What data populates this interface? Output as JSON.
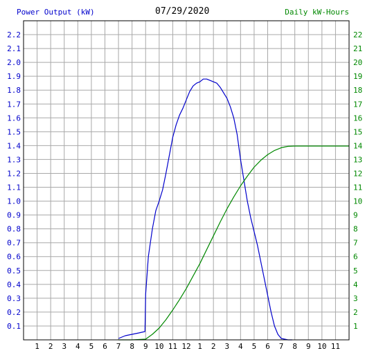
{
  "header": {
    "left_title": "Power Output (kW)",
    "date": "07/29/2020",
    "right_title": "Daily kW-Hours"
  },
  "colors": {
    "power": "#0000cc",
    "energy": "#008800",
    "grid": "#a8a8a8",
    "frame": "#000000"
  },
  "chart_data": {
    "type": "line",
    "title": "07/29/2020",
    "x_tick_labels": [
      "1",
      "2",
      "3",
      "4",
      "5",
      "6",
      "7",
      "8",
      "9",
      "10",
      "11",
      "12",
      "1",
      "2",
      "3",
      "4",
      "5",
      "6",
      "7",
      "8",
      "9",
      "10",
      "11"
    ],
    "y_left_ticks": [
      "0.1",
      "0.2",
      "0.3",
      "0.4",
      "0.5",
      "0.6",
      "0.7",
      "0.8",
      "0.9",
      "1.0",
      "1.1",
      "1.2",
      "1.3",
      "1.4",
      "1.5",
      "1.6",
      "1.7",
      "1.8",
      "1.9",
      "2.0",
      "2.1",
      "2.2"
    ],
    "y_right_ticks": [
      "1",
      "2",
      "3",
      "4",
      "5",
      "6",
      "7",
      "8",
      "9",
      "10",
      "11",
      "12",
      "13",
      "14",
      "15",
      "16",
      "17",
      "18",
      "19",
      "20",
      "21",
      "22"
    ],
    "x_range_hours": [
      0,
      24
    ],
    "y_left_range": [
      0,
      2.3
    ],
    "y_right_range": [
      0,
      23
    ],
    "series": [
      {
        "name": "Power Output (kW)",
        "axis": "left",
        "points": [
          [
            7.0,
            0.01
          ],
          [
            7.25,
            0.02
          ],
          [
            7.5,
            0.03
          ],
          [
            8.0,
            0.04
          ],
          [
            8.5,
            0.05
          ],
          [
            8.95,
            0.06
          ],
          [
            9.0,
            0.33
          ],
          [
            9.2,
            0.6
          ],
          [
            9.5,
            0.8
          ],
          [
            9.75,
            0.93
          ],
          [
            10.0,
            1.0
          ],
          [
            10.25,
            1.08
          ],
          [
            10.5,
            1.2
          ],
          [
            10.75,
            1.33
          ],
          [
            11.0,
            1.46
          ],
          [
            11.25,
            1.55
          ],
          [
            11.5,
            1.62
          ],
          [
            11.75,
            1.67
          ],
          [
            12.0,
            1.73
          ],
          [
            12.25,
            1.79
          ],
          [
            12.5,
            1.83
          ],
          [
            12.75,
            1.85
          ],
          [
            13.0,
            1.86
          ],
          [
            13.25,
            1.88
          ],
          [
            13.5,
            1.88
          ],
          [
            13.75,
            1.87
          ],
          [
            14.0,
            1.86
          ],
          [
            14.25,
            1.85
          ],
          [
            14.5,
            1.82
          ],
          [
            14.75,
            1.78
          ],
          [
            15.0,
            1.74
          ],
          [
            15.25,
            1.68
          ],
          [
            15.5,
            1.6
          ],
          [
            15.75,
            1.48
          ],
          [
            16.0,
            1.3
          ],
          [
            16.25,
            1.15
          ],
          [
            16.5,
            1.0
          ],
          [
            16.75,
            0.88
          ],
          [
            17.0,
            0.78
          ],
          [
            17.25,
            0.68
          ],
          [
            17.5,
            0.56
          ],
          [
            17.75,
            0.44
          ],
          [
            18.0,
            0.32
          ],
          [
            18.25,
            0.2
          ],
          [
            18.5,
            0.1
          ],
          [
            18.75,
            0.04
          ],
          [
            19.0,
            0.01
          ],
          [
            19.5,
            0.0
          ],
          [
            19.8,
            0.0
          ]
        ]
      },
      {
        "name": "Daily kW-Hours",
        "axis": "right",
        "points": [
          [
            7.0,
            0.0
          ],
          [
            8.0,
            0.0
          ],
          [
            9.0,
            0.05
          ],
          [
            9.5,
            0.4
          ],
          [
            10.0,
            0.85
          ],
          [
            10.5,
            1.45
          ],
          [
            11.0,
            2.15
          ],
          [
            11.5,
            2.9
          ],
          [
            12.0,
            3.7
          ],
          [
            12.5,
            4.6
          ],
          [
            13.0,
            5.5
          ],
          [
            13.5,
            6.5
          ],
          [
            14.0,
            7.5
          ],
          [
            14.5,
            8.5
          ],
          [
            15.0,
            9.45
          ],
          [
            15.5,
            10.3
          ],
          [
            16.0,
            11.1
          ],
          [
            16.5,
            11.8
          ],
          [
            17.0,
            12.45
          ],
          [
            17.5,
            12.95
          ],
          [
            18.0,
            13.35
          ],
          [
            18.5,
            13.65
          ],
          [
            19.0,
            13.85
          ],
          [
            19.5,
            13.95
          ],
          [
            20.0,
            13.97
          ],
          [
            21.0,
            13.97
          ],
          [
            22.0,
            13.97
          ],
          [
            24.0,
            13.97
          ]
        ]
      }
    ]
  }
}
